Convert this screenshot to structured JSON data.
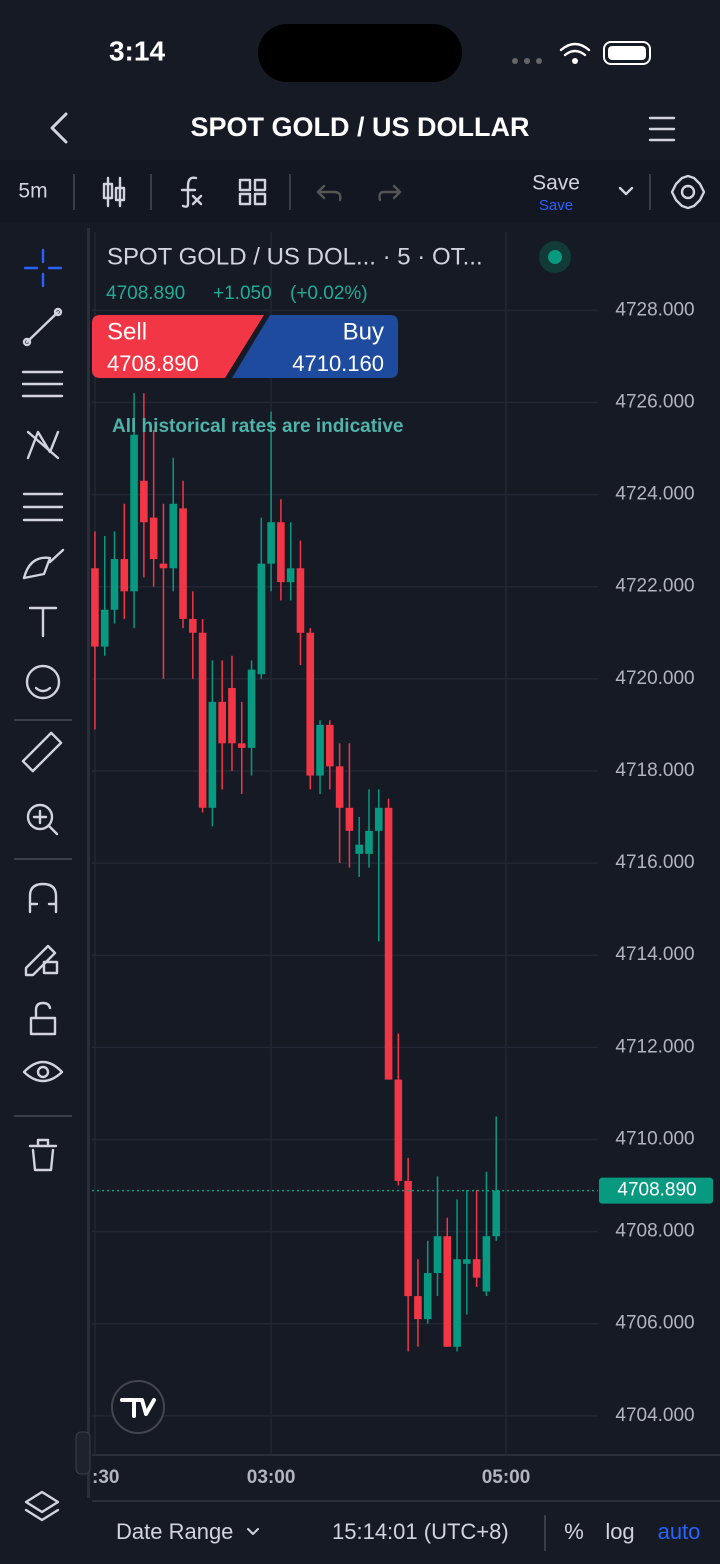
{
  "ui": {
    "status_time": "3:14",
    "header_title": "SPOT GOLD / US DOLLAR",
    "interval": "5m",
    "save": "Save",
    "save_sub": "Save",
    "legend_title": "SPOT GOLD / US DOL... · 5 · OT...",
    "legend_price": "4708.890",
    "legend_change": "+1.050",
    "legend_change_pct": "(+0.02%)",
    "sell_label": "Sell",
    "sell_price": "4708.890",
    "buy_label": "Buy",
    "buy_price": "4710.160",
    "notice": "All historical rates are indicative",
    "date_range": "Date Range",
    "clock": "15:14:01 (UTC+8)",
    "percent": "%",
    "log": "log",
    "auto": "auto"
  },
  "chart_data": {
    "type": "candlestick",
    "up_color": "#089981",
    "down_color": "#f23645",
    "grid": true,
    "x": [
      90,
      95,
      100,
      105,
      110,
      115,
      120,
      125,
      130,
      135,
      140,
      145,
      150,
      155,
      160,
      165,
      170,
      175,
      180,
      185,
      190,
      195,
      200,
      205,
      210,
      215,
      220,
      225,
      230,
      235,
      240,
      245,
      250,
      255,
      260,
      265,
      270,
      275,
      280,
      285,
      290,
      295
    ],
    "open": [
      4722.4,
      4720.7,
      4721.5,
      4722.6,
      4721.9,
      4724.3,
      4723.5,
      4722.5,
      4722.4,
      4723.7,
      4721.3,
      4721.0,
      4717.2,
      4719.5,
      4719.8,
      4718.6,
      4718.5,
      4720.1,
      4722.5,
      4723.4,
      4722.1,
      4722.4,
      4721.0,
      4717.9,
      4719.0,
      4718.1,
      4717.2,
      4716.2,
      4716.2,
      4716.7,
      4717.2,
      4711.3,
      4709.1,
      4706.6,
      4706.1,
      4707.1,
      4707.9,
      4705.5,
      4707.3,
      4707.4,
      4706.7,
      4707.9
    ],
    "high": [
      4723.2,
      4723.1,
      4723.2,
      4723.8,
      4726.2,
      4726.2,
      4725.4,
      4723.8,
      4724.8,
      4724.3,
      4721.9,
      4721.3,
      4720.4,
      4720.4,
      4720.5,
      4719.5,
      4720.4,
      4723.5,
      4725.8,
      4723.9,
      4723.4,
      4723.0,
      4721.1,
      4719.1,
      4719.1,
      4718.6,
      4718.6,
      4717.0,
      4717.6,
      4717.6,
      4717.4,
      4712.3,
      4709.6,
      4707.4,
      4707.8,
      4709.2,
      4708.3,
      4708.7,
      4708.9,
      4708.9,
      4709.3,
      4710.5
    ],
    "low": [
      4718.9,
      4720.5,
      4721.2,
      4721.3,
      4721.1,
      4722.2,
      4722.0,
      4720.0,
      4721.9,
      4721.1,
      4720.0,
      4717.1,
      4716.8,
      4717.6,
      4718.0,
      4717.5,
      4717.9,
      4720.0,
      4721.9,
      4721.7,
      4721.7,
      4720.3,
      4717.6,
      4717.5,
      4717.6,
      4716.0,
      4715.9,
      4715.7,
      4715.9,
      4714.3,
      4711.3,
      4709.0,
      4705.4,
      4705.5,
      4706.0,
      4706.6,
      4705.5,
      4705.4,
      4706.2,
      4706.8,
      4706.6,
      4707.8
    ],
    "close": [
      4720.7,
      4721.5,
      4722.6,
      4721.9,
      4725.3,
      4723.4,
      4722.6,
      4722.4,
      4723.8,
      4721.3,
      4721.0,
      4717.2,
      4719.5,
      4718.6,
      4718.6,
      4718.5,
      4720.2,
      4722.5,
      4723.4,
      4722.1,
      4722.4,
      4721.0,
      4717.9,
      4719.0,
      4718.1,
      4717.2,
      4716.7,
      4716.4,
      4716.7,
      4717.2,
      4711.3,
      4709.1,
      4706.6,
      4706.1,
      4707.1,
      4707.9,
      4705.5,
      4707.4,
      4707.4,
      4707.0,
      4707.9,
      4708.89
    ],
    "xlim": [
      88.5,
      347
    ],
    "ylim": [
      4703.15,
      4729.7
    ],
    "xticks": [
      {
        "value": 90,
        "label": ":30"
      },
      {
        "value": 180,
        "label": "03:00"
      },
      {
        "value": 300,
        "label": "05:00"
      }
    ],
    "yticks": [
      {
        "value": 4704,
        "label": "4704.000"
      },
      {
        "value": 4706,
        "label": "4706.000"
      },
      {
        "value": 4708,
        "label": "4708.000"
      },
      {
        "value": 4710,
        "label": "4710.000"
      },
      {
        "value": 4712,
        "label": "4712.000"
      },
      {
        "value": 4714,
        "label": "4714.000"
      },
      {
        "value": 4716,
        "label": "4716.000"
      },
      {
        "value": 4718,
        "label": "4718.000"
      },
      {
        "value": 4720,
        "label": "4720.000"
      },
      {
        "value": 4722,
        "label": "4722.000"
      },
      {
        "value": 4724,
        "label": "4724.000"
      },
      {
        "value": 4726,
        "label": "4726.000"
      },
      {
        "value": 4728,
        "label": "4728.000"
      }
    ],
    "last_price": {
      "value": 4708.89,
      "label": "4708.890"
    }
  }
}
